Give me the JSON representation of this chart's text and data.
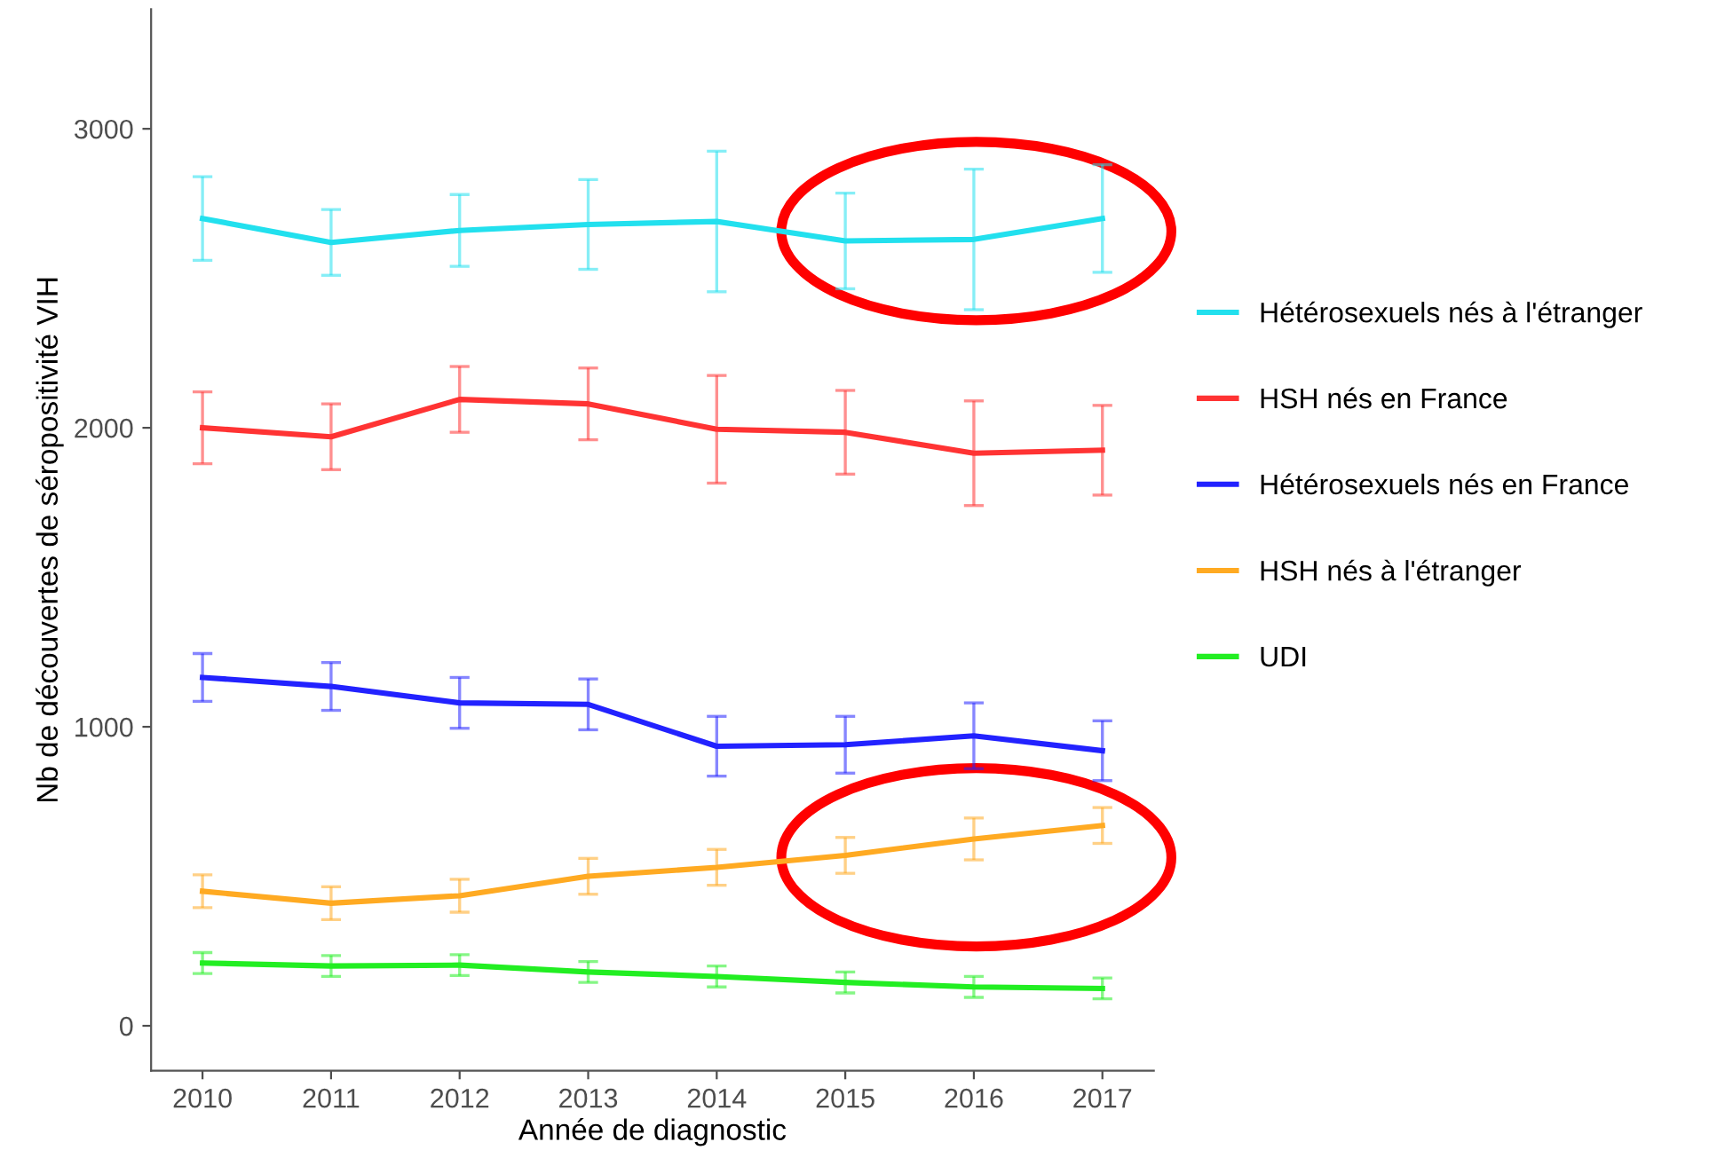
{
  "chart_data": {
    "type": "line",
    "xlabel": "Année de diagnostic",
    "ylabel": "Nb de découvertes de séropositivité VIH",
    "x": [
      2010,
      2011,
      2012,
      2013,
      2014,
      2015,
      2016,
      2017
    ],
    "xlim": [
      2009.6,
      2017.4
    ],
    "xticks": [
      2010,
      2011,
      2012,
      2013,
      2014,
      2015,
      2016,
      2017
    ],
    "ylim": [
      -150,
      3400
    ],
    "yticks": [
      0,
      1000,
      2000,
      3000
    ],
    "grid": false,
    "legend": "right",
    "marker": "none",
    "line_style": "solid",
    "series": [
      {
        "name": "Hétérosexuels nés à l'étranger",
        "color": "#22e0ee",
        "values": [
          2700,
          2620,
          2660,
          2680,
          2690,
          2625,
          2630,
          2700
        ],
        "errors": [
          140,
          110,
          120,
          150,
          235,
          160,
          235,
          180
        ]
      },
      {
        "name": "HSH nés en France",
        "color": "#ff3333",
        "values": [
          2000,
          1970,
          2095,
          2080,
          1995,
          1985,
          1915,
          1925
        ],
        "errors": [
          120,
          110,
          110,
          120,
          180,
          140,
          175,
          150
        ]
      },
      {
        "name": "Hétérosexuels nés en France",
        "color": "#2222ff",
        "values": [
          1165,
          1135,
          1080,
          1075,
          935,
          940,
          970,
          920
        ],
        "errors": [
          80,
          80,
          85,
          85,
          100,
          95,
          110,
          100
        ]
      },
      {
        "name": "HSH nés à l'étranger",
        "color": "#ffaa22",
        "values": [
          450,
          410,
          435,
          500,
          530,
          570,
          625,
          670
        ],
        "errors": [
          55,
          55,
          55,
          60,
          60,
          60,
          70,
          60
        ]
      },
      {
        "name": "UDI",
        "color": "#22ee22",
        "values": [
          210,
          200,
          203,
          180,
          165,
          145,
          130,
          125
        ],
        "errors": [
          35,
          35,
          35,
          35,
          35,
          35,
          35,
          35
        ]
      }
    ]
  }
}
